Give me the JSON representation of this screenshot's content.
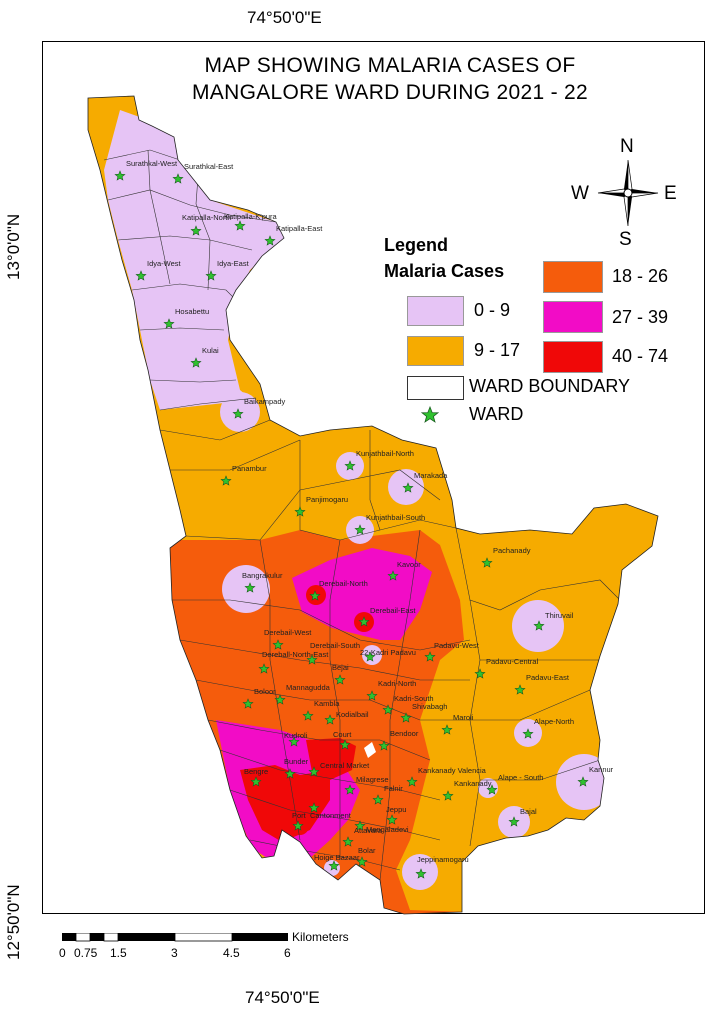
{
  "coords": {
    "lon_top": "74°50'0\"E",
    "lon_bottom": "74°50'0\"E",
    "lat_upper": "13°0'0\"N",
    "lat_lower": "12°50'0\"N"
  },
  "title": {
    "line1": "MAP SHOWING MALARIA CASES OF",
    "line2": "MANGALORE WARD DURING 2021 - 22"
  },
  "legend": {
    "heading1": "Legend",
    "heading2": "Malaria Cases",
    "classes": [
      {
        "label": "0 - 9",
        "color": "#e6c4f5"
      },
      {
        "label": "9 - 17",
        "color": "#f6ab00"
      },
      {
        "label": "18 - 26",
        "color": "#f55c0c"
      },
      {
        "label": "27 - 39",
        "color": "#f20cc6"
      },
      {
        "label": "40 - 74",
        "color": "#f00808"
      }
    ],
    "boundary_label": "WARD BOUNDARY",
    "ward_label": "WARD",
    "ward_marker_color": "#2fc12f"
  },
  "compass": {
    "n": "N",
    "s": "S",
    "e": "E",
    "w": "W"
  },
  "scale": {
    "unit": "Kilometers",
    "ticks": [
      "0",
      "0.75",
      "1.5",
      "3",
      "4.5",
      "6"
    ]
  },
  "wards": [
    {
      "name": "Surathkal-West",
      "cls": 0
    },
    {
      "name": "Surathkal-East",
      "cls": 0
    },
    {
      "name": "Katipalla-North",
      "cls": 0
    },
    {
      "name": "Katipalla-K'pura",
      "cls": 0
    },
    {
      "name": "Katipalla-East",
      "cls": 0
    },
    {
      "name": "Idya-West",
      "cls": 0
    },
    {
      "name": "Idya-East",
      "cls": 0
    },
    {
      "name": "Hosabettu",
      "cls": 0
    },
    {
      "name": "Kulai",
      "cls": 0
    },
    {
      "name": "Baikampady",
      "cls": 0
    },
    {
      "name": "Panambur",
      "cls": 1
    },
    {
      "name": "Kunjathbail-North",
      "cls": 0
    },
    {
      "name": "Marakada",
      "cls": 0
    },
    {
      "name": "Panjimogaru",
      "cls": 1
    },
    {
      "name": "Kunjathbail-South",
      "cls": 0
    },
    {
      "name": "Pachanady",
      "cls": 1
    },
    {
      "name": "Kavoor",
      "cls": 3
    },
    {
      "name": "Bangrakulur",
      "cls": 0
    },
    {
      "name": "Derebail-North",
      "cls": 4
    },
    {
      "name": "Derebail-East",
      "cls": 4
    },
    {
      "name": "Thiruvail",
      "cls": 0
    },
    {
      "name": "Derebail-West",
      "cls": 2
    },
    {
      "name": "Derebail-South",
      "cls": 1
    },
    {
      "name": "Dereball-North-East",
      "cls": 2
    },
    {
      "name": "22-Kadri Padavu",
      "cls": 0
    },
    {
      "name": "Padavu-West",
      "cls": 1
    },
    {
      "name": "Padavu-Central",
      "cls": 1
    },
    {
      "name": "Padavu-East",
      "cls": 1
    },
    {
      "name": "Bejai",
      "cls": 2
    },
    {
      "name": "Boloor",
      "cls": 2
    },
    {
      "name": "Mannagudda",
      "cls": 2
    },
    {
      "name": "Kadri-North",
      "cls": 1
    },
    {
      "name": "Kadri-South",
      "cls": 1
    },
    {
      "name": "Kambla",
      "cls": 1
    },
    {
      "name": "Kodialbail",
      "cls": 2
    },
    {
      "name": "Shivabagh",
      "cls": 1
    },
    {
      "name": "Maroli",
      "cls": 1
    },
    {
      "name": "Alape-North",
      "cls": 0
    },
    {
      "name": "Kudroli",
      "cls": 3
    },
    {
      "name": "Court",
      "cls": 4
    },
    {
      "name": "Bendoor",
      "cls": 1
    },
    {
      "name": "Kannur",
      "cls": 0
    },
    {
      "name": "Bunder",
      "cls": 4
    },
    {
      "name": "Bengre",
      "cls": 4
    },
    {
      "name": "Central Market",
      "cls": 3
    },
    {
      "name": "Milagrese",
      "cls": 2
    },
    {
      "name": "Kankanady Valencia",
      "cls": 1
    },
    {
      "name": "Falnir",
      "cls": 2
    },
    {
      "name": "Kankanady",
      "cls": 0
    },
    {
      "name": "Alape - South",
      "cls": 0
    },
    {
      "name": "Cantonment",
      "cls": 3
    },
    {
      "name": "Port",
      "cls": 4
    },
    {
      "name": "Jeppu",
      "cls": 1
    },
    {
      "name": "Attavara",
      "cls": 2
    },
    {
      "name": "Bajal",
      "cls": 0
    },
    {
      "name": "Mangaladevi",
      "cls": 2
    },
    {
      "name": "Hoige Bazaar",
      "cls": 0
    },
    {
      "name": "Bolar",
      "cls": 2
    },
    {
      "name": "Jeppinamogaru",
      "cls": 0
    }
  ]
}
